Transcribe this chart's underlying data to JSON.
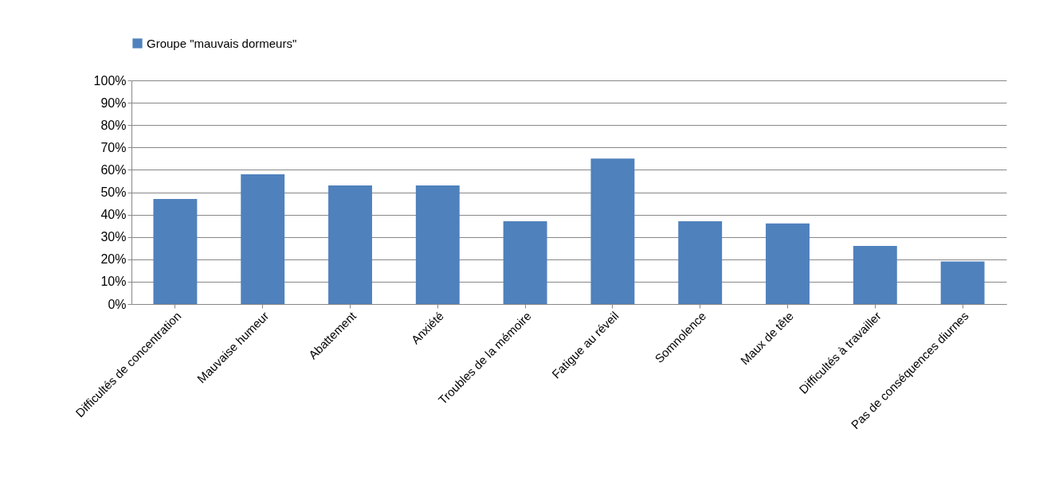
{
  "chart_data": {
    "type": "bar",
    "categories": [
      "Difficultés de concentration",
      "Mauvaise humeur",
      "Abattement",
      "Anxiété",
      "Troubles de la mémoire",
      "Fatigue au réveil",
      "Somnolence",
      "Maux de tête",
      "Difficultés à travailler",
      "Pas de conséquences diurnes"
    ],
    "series": [
      {
        "name": "Groupe \"mauvais dormeurs\"",
        "color": "#4f81bd",
        "values": [
          47,
          58,
          53,
          53,
          37,
          65,
          37,
          36,
          26,
          19
        ]
      }
    ],
    "ylim": [
      0,
      100
    ],
    "yticks": [
      {
        "value": 0,
        "label": "0%"
      },
      {
        "value": 10,
        "label": "10%"
      },
      {
        "value": 20,
        "label": "20%"
      },
      {
        "value": 30,
        "label": "30%"
      },
      {
        "value": 40,
        "label": "40%"
      },
      {
        "value": 50,
        "label": "50%"
      },
      {
        "value": 60,
        "label": "60%"
      },
      {
        "value": 70,
        "label": "70%"
      },
      {
        "value": 80,
        "label": "80%"
      },
      {
        "value": 90,
        "label": "90%"
      },
      {
        "value": 100,
        "label": "100%"
      }
    ],
    "grid": "y",
    "legend": "top"
  }
}
